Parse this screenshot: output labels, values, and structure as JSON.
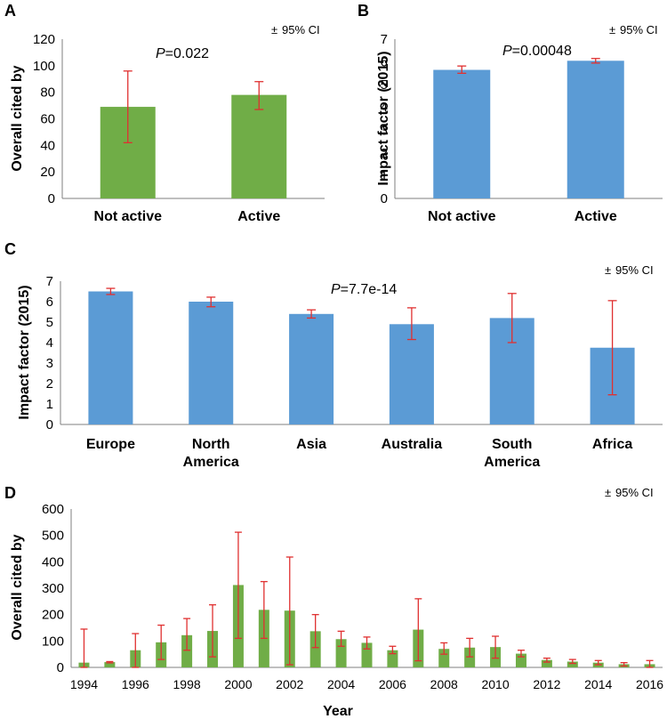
{
  "colors": {
    "green": "#70ad47",
    "blue": "#5b9bd5",
    "error": "#e03030",
    "axis": "#7f7f7f"
  },
  "ci_label_sign": "±",
  "chart_data": [
    {
      "panel": "A",
      "type": "bar",
      "color": "green",
      "categories": [
        "Not active",
        "Active"
      ],
      "values": [
        69,
        78
      ],
      "ci_low": [
        42,
        67
      ],
      "ci_high": [
        96,
        88
      ],
      "ylabel": "Overall cited  by",
      "xlabel": "",
      "ylim": [
        0,
        120
      ],
      "yticks": [
        0,
        20,
        40,
        60,
        80,
        100,
        120
      ],
      "p_letter": "P",
      "p_value": "=0.022",
      "ci_label": "95% CI"
    },
    {
      "panel": "B",
      "type": "bar",
      "color": "blue",
      "categories": [
        "Not active",
        "Active"
      ],
      "values": [
        5.65,
        6.05
      ],
      "ci_low": [
        5.5,
        5.95
      ],
      "ci_high": [
        5.82,
        6.15
      ],
      "ylabel": "Impact factor (2015)",
      "xlabel": "",
      "ylim": [
        0,
        7
      ],
      "yticks": [
        0,
        1,
        2,
        3,
        4,
        5,
        6,
        7
      ],
      "p_letter": "P",
      "p_value": "=0.00048",
      "ci_label": "95% CI"
    },
    {
      "panel": "C",
      "type": "bar",
      "color": "blue",
      "categories": [
        [
          "Europe"
        ],
        [
          "North",
          "America"
        ],
        [
          "Asia"
        ],
        [
          "Australia"
        ],
        [
          "South",
          "America"
        ],
        [
          "Africa"
        ]
      ],
      "values": [
        6.5,
        6.0,
        5.4,
        4.9,
        5.2,
        3.75
      ],
      "ci_low": [
        6.35,
        5.75,
        5.2,
        4.15,
        4.0,
        1.45
      ],
      "ci_high": [
        6.65,
        6.22,
        5.6,
        5.7,
        6.4,
        6.05
      ],
      "ylabel": "Impact factor (2015)",
      "xlabel": "",
      "ylim": [
        0,
        7
      ],
      "yticks": [
        0,
        1,
        2,
        3,
        4,
        5,
        6,
        7
      ],
      "p_letter": "P",
      "p_value": "=7.7e-14",
      "ci_label": "95% CI"
    },
    {
      "panel": "D",
      "type": "bar",
      "color": "green",
      "categories": [
        "1994",
        "1995",
        "1996",
        "1997",
        "1998",
        "1999",
        "2000",
        "2001",
        "2002",
        "2003",
        "2004",
        "2005",
        "2006",
        "2007",
        "2008",
        "2009",
        "2010",
        "2011",
        "2012",
        "2013",
        "2014",
        "2015",
        "2016"
      ],
      "tick_labels": [
        "1994",
        "",
        "1996",
        "",
        "1998",
        "",
        "2000",
        "",
        "2002",
        "",
        "2004",
        "",
        "2006",
        "",
        "2008",
        "",
        "2010",
        "",
        "2012",
        "",
        "2014",
        "",
        "2016"
      ],
      "values": [
        18,
        20,
        65,
        95,
        122,
        138,
        312,
        218,
        215,
        137,
        107,
        93,
        65,
        143,
        70,
        75,
        77,
        52,
        28,
        22,
        18,
        12,
        12
      ],
      "ci_low": [
        0,
        17,
        0,
        30,
        65,
        40,
        110,
        110,
        10,
        75,
        80,
        70,
        52,
        25,
        50,
        40,
        35,
        40,
        20,
        15,
        10,
        5,
        0
      ],
      "ci_high": [
        145,
        22,
        128,
        160,
        185,
        237,
        512,
        325,
        418,
        200,
        137,
        115,
        80,
        260,
        93,
        110,
        118,
        65,
        35,
        30,
        26,
        18,
        26
      ],
      "ylabel": "Overall cited  by",
      "xlabel": "Year",
      "ylim": [
        0,
        600
      ],
      "yticks": [
        0,
        100,
        200,
        300,
        400,
        500,
        600
      ],
      "ci_label": "95% CI"
    }
  ]
}
